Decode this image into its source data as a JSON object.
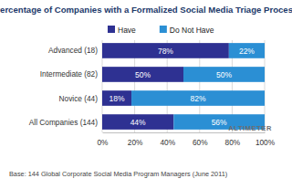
{
  "chart_data": {
    "type": "bar",
    "title": "Percentage of Companies with a Formalized Social Media Triage Process",
    "orientation": "horizontal",
    "stacked": true,
    "data_labels": true,
    "legend": "top",
    "grid": true,
    "categories": [
      "Advanced (18)",
      "Intermediate (82)",
      "Novice (44)",
      "All Companies (144)"
    ],
    "series": [
      {
        "name": "Have",
        "color": "#2e3192",
        "values": [
          78,
          50,
          18,
          44
        ],
        "value_labels": [
          "78%",
          "50%",
          "18%",
          "44%"
        ]
      },
      {
        "name": "Do Not Have",
        "color": "#2b8fd4",
        "values": [
          22,
          50,
          82,
          56
        ],
        "value_labels": [
          "22%",
          "50%",
          "82%",
          "56%"
        ]
      }
    ],
    "xlim": [
      0,
      100
    ],
    "xticks": [
      {
        "value": 0,
        "label": "0%"
      },
      {
        "value": 20,
        "label": "20%"
      },
      {
        "value": 40,
        "label": "40%"
      },
      {
        "value": 60,
        "label": "60%"
      },
      {
        "value": 80,
        "label": "80%"
      },
      {
        "value": 100,
        "label": "100%"
      }
    ],
    "annotations": [
      "Base: 144 Global Corporate Social Media Program Managers (June 2011)",
      "ALTIMETER"
    ]
  }
}
